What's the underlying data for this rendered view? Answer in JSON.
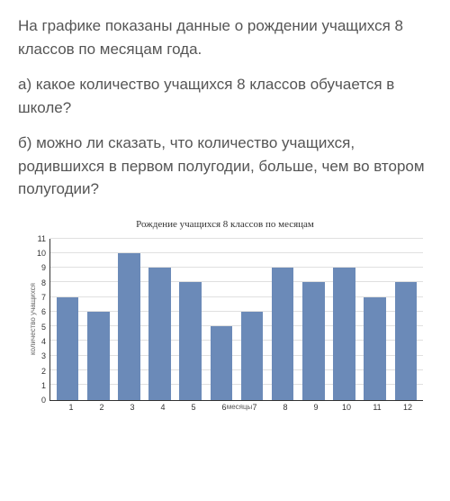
{
  "question": {
    "intro": "На графике показаны данные о рождении учащихся 8 классов по месяцам года.",
    "a": "а) какое количество учащихся 8 классов обучается в школе?",
    "b": "б) можно ли сказать, что количество учащихся, родившихся в первом полугодии, больше, чем во втором полугодии?"
  },
  "chart": {
    "type": "bar",
    "title": "Рождение учащихся  8 классов  по месяцам",
    "ylabel": "количество учащихся",
    "xlabel": "месяцы",
    "categories": [
      "1",
      "2",
      "3",
      "4",
      "5",
      "6",
      "7",
      "8",
      "9",
      "10",
      "11",
      "12"
    ],
    "values": [
      7,
      6,
      10,
      9,
      8,
      5,
      6,
      9,
      8,
      9,
      7,
      8
    ],
    "ylim": [
      0,
      11
    ],
    "ytick_step": 1,
    "yticks": [
      "11",
      "10",
      "9",
      "8",
      "7",
      "6",
      "5",
      "4",
      "3",
      "2",
      "1",
      "0"
    ],
    "bar_color": "#6b8ab8",
    "grid_color": "#e0e0e0",
    "axis_color": "#333333",
    "background": "#ffffff",
    "text_color": "#4a4a4a",
    "title_fontsize": 11,
    "tick_fontsize": 9,
    "label_fontsize": 8,
    "bar_width_pct": 6.0
  }
}
